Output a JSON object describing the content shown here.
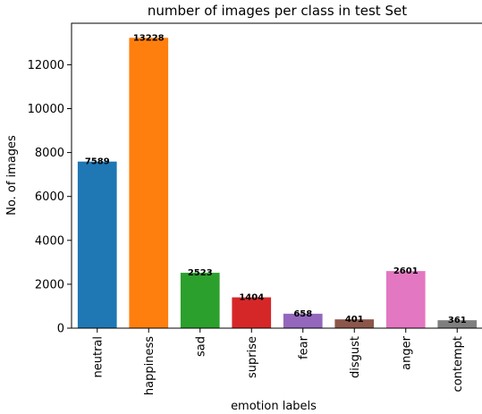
{
  "chart_data": {
    "type": "bar",
    "title": "number of images per class in test Set",
    "xlabel": "emotion labels",
    "ylabel": "No. of images",
    "categories": [
      "neutral",
      "happiness",
      "sad",
      "suprise",
      "fear",
      "disgust",
      "anger",
      "contempt"
    ],
    "values": [
      7589,
      13228,
      2523,
      1404,
      658,
      401,
      2601,
      361
    ],
    "ylim": [
      0,
      13890
    ],
    "yticks": [
      0,
      2000,
      4000,
      6000,
      8000,
      10000,
      12000
    ],
    "colors": [
      "#1f77b4",
      "#ff7f0e",
      "#2ca02c",
      "#d62728",
      "#9467bd",
      "#8c564b",
      "#e377c2",
      "#7f7f7f"
    ],
    "grid": false,
    "legend": "none"
  }
}
